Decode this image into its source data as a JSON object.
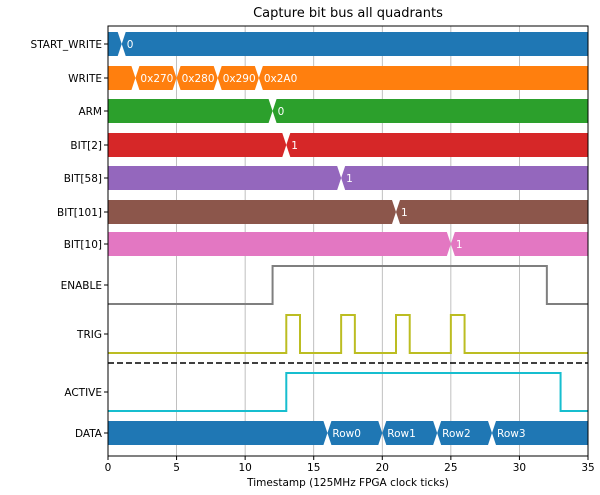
{
  "chart_data": {
    "type": "timing-diagram",
    "title": "Capture bit bus all quadrants",
    "xlabel": "Timestamp (125MHz FPGA clock ticks)",
    "xlim": [
      0,
      35
    ],
    "xticks": [
      0,
      5,
      10,
      15,
      20,
      25,
      30,
      35
    ],
    "grid": "vertical",
    "lanes": [
      {
        "name": "START_WRITE",
        "kind": "bus",
        "color": "#1f77b4",
        "changes": [
          {
            "t": 1,
            "label": "0"
          }
        ]
      },
      {
        "name": "WRITE",
        "kind": "bus",
        "color": "#ff7f0e",
        "changes": [
          {
            "t": 2,
            "label": "0x270"
          },
          {
            "t": 5,
            "label": "0x280"
          },
          {
            "t": 8,
            "label": "0x290"
          },
          {
            "t": 11,
            "label": "0x2A0"
          }
        ]
      },
      {
        "name": "ARM",
        "kind": "bus",
        "color": "#2ca02c",
        "changes": [
          {
            "t": 12,
            "label": "0"
          }
        ]
      },
      {
        "name": "BIT[2]",
        "kind": "bus",
        "color": "#d62728",
        "changes": [
          {
            "t": 13,
            "label": "1"
          }
        ]
      },
      {
        "name": "BIT[58]",
        "kind": "bus",
        "color": "#9467bd",
        "changes": [
          {
            "t": 17,
            "label": "1"
          }
        ]
      },
      {
        "name": "BIT[101]",
        "kind": "bus",
        "color": "#8c564b",
        "changes": [
          {
            "t": 21,
            "label": "1"
          }
        ]
      },
      {
        "name": "BIT[10]",
        "kind": "bus",
        "color": "#e377c2",
        "changes": [
          {
            "t": 25,
            "label": "1"
          }
        ]
      },
      {
        "name": "ENABLE",
        "kind": "bit",
        "color": "#7f7f7f",
        "high": [
          [
            12,
            32
          ]
        ]
      },
      {
        "name": "TRIG",
        "kind": "bit",
        "color": "#bcbd22",
        "high": [
          [
            13,
            14
          ],
          [
            17,
            18
          ],
          [
            21,
            22
          ],
          [
            25,
            26
          ]
        ]
      },
      {
        "name": "ACTIVE",
        "kind": "bit",
        "color": "#17becf",
        "high": [
          [
            13,
            33
          ]
        ]
      },
      {
        "name": "DATA",
        "kind": "bus",
        "color": "#1f77b4",
        "changes": [
          {
            "t": 16,
            "label": "Row0"
          },
          {
            "t": 20,
            "label": "Row1"
          },
          {
            "t": 24,
            "label": "Row2"
          },
          {
            "t": 28,
            "label": "Row3"
          }
        ]
      }
    ],
    "divider_after": "TRIG"
  }
}
